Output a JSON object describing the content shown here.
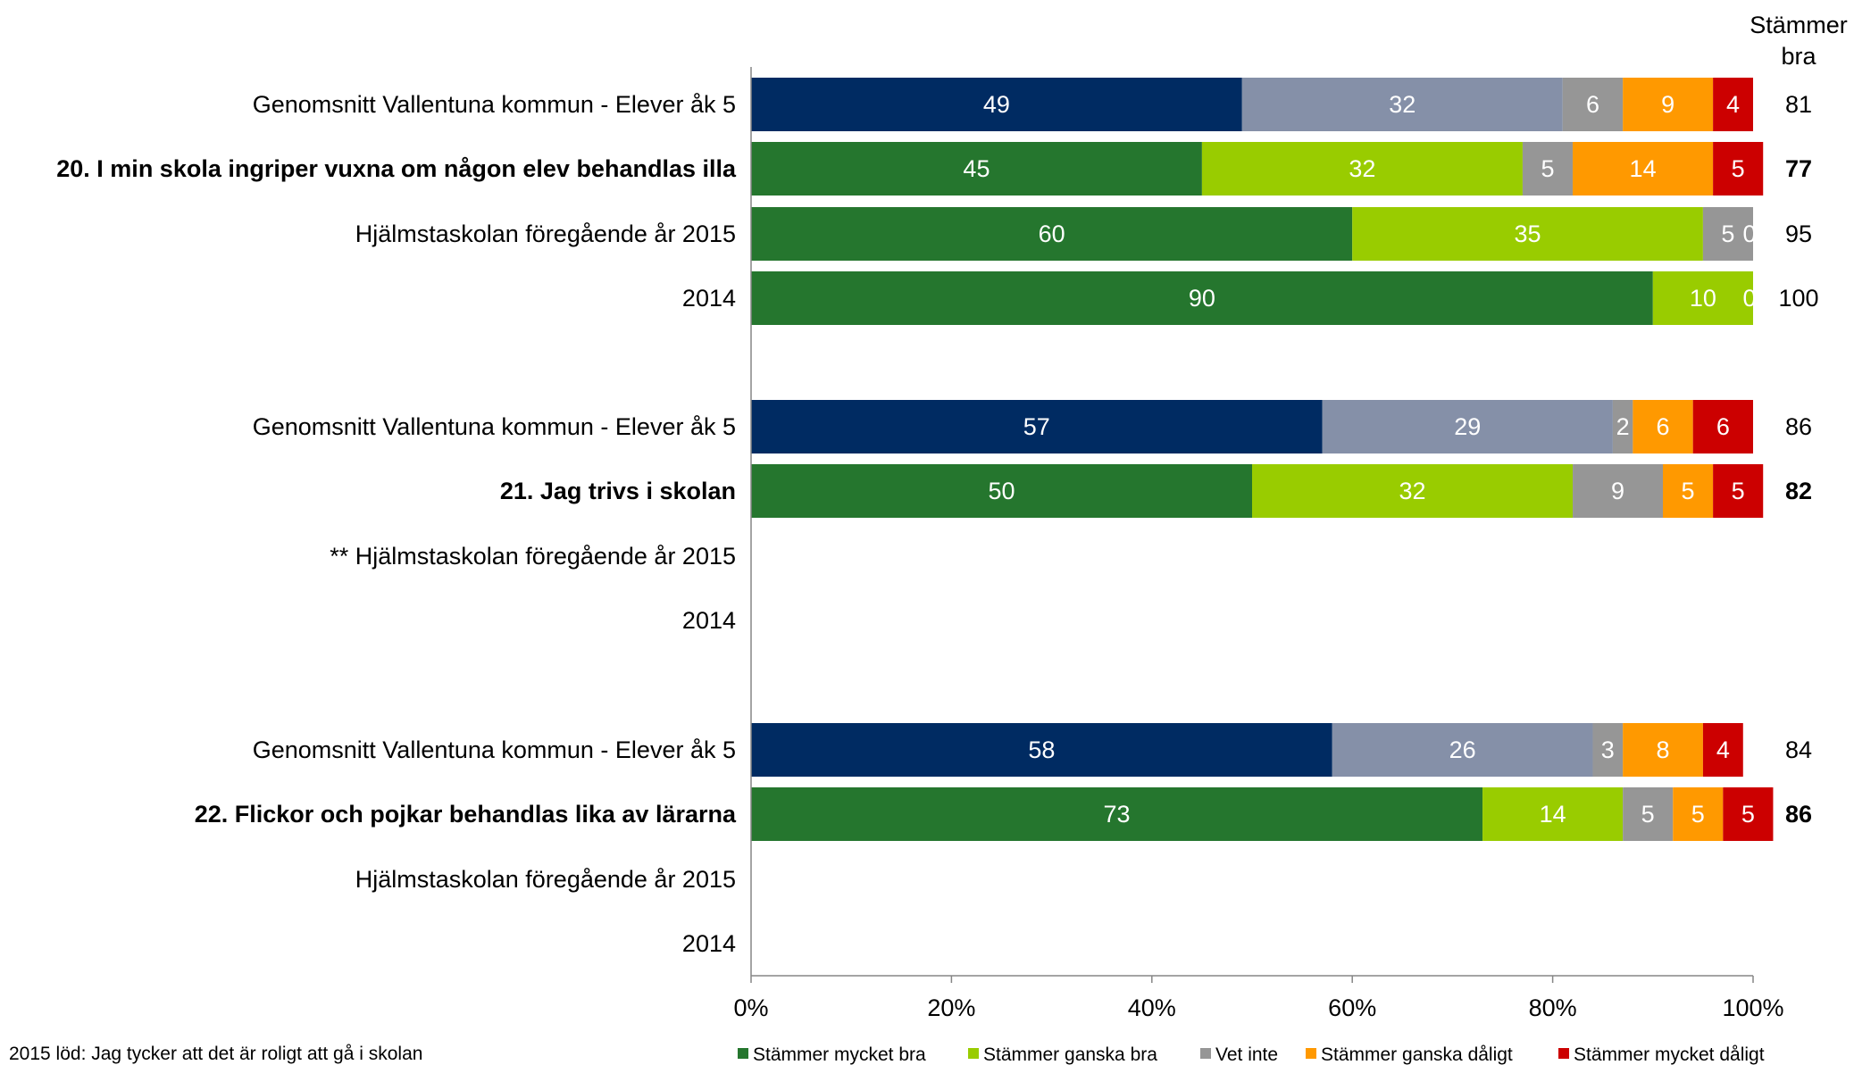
{
  "chart_data": {
    "type": "bar",
    "orientation": "horizontal",
    "stacked": "percent",
    "total_header": [
      "Stämmer",
      "bra"
    ],
    "xlim": [
      0,
      100
    ],
    "xticks": [
      "0%",
      "20%",
      "40%",
      "60%",
      "80%",
      "100%"
    ],
    "legend_position": "bottom-right",
    "series": [
      {
        "name": "Stämmer mycket bra",
        "color": "#25762E"
      },
      {
        "name": "Stämmer ganska bra",
        "color": "#99CC00"
      },
      {
        "name": "Vet inte",
        "color": "#969696"
      },
      {
        "name": "Stämmer ganska dåligt",
        "color": "#FF9900"
      },
      {
        "name": "Stämmer mycket dåligt",
        "color": "#CC0000"
      }
    ],
    "kommun_colors": [
      "#002B62",
      "#8590A8",
      "#969696",
      "#FF9900",
      "#CC0000"
    ],
    "rows": [
      {
        "label": "Genomsnitt Vallentuna kommun - Elever åk 5",
        "kind": "kommun",
        "bold": false,
        "values": [
          49,
          32,
          6,
          9,
          4
        ],
        "labels": [
          "49",
          "32",
          "6",
          "9",
          "4"
        ],
        "total": "81"
      },
      {
        "label": "20. I min skola ingriper vuxna om någon elev behandlas illa",
        "kind": "school",
        "bold": true,
        "values": [
          45,
          32,
          5,
          14,
          5
        ],
        "labels": [
          "45",
          "32",
          "5",
          "14",
          "5"
        ],
        "total": "77"
      },
      {
        "label": "Hjälmstaskolan föregående år 2015",
        "kind": "school",
        "bold": false,
        "values": [
          60,
          35,
          5,
          0,
          0
        ],
        "labels": [
          "60",
          "35",
          "5",
          "0",
          ""
        ],
        "total": "95"
      },
      {
        "label": "2014",
        "kind": "school",
        "bold": false,
        "values": [
          90,
          10,
          0,
          0,
          0
        ],
        "labels": [
          "90",
          "10",
          "0",
          "",
          ""
        ],
        "total": "100"
      },
      {
        "label": "Genomsnitt Vallentuna kommun - Elever åk 5",
        "kind": "kommun",
        "bold": false,
        "values": [
          57,
          29,
          2,
          6,
          6
        ],
        "labels": [
          "57",
          "29",
          "2",
          "6",
          "6"
        ],
        "total": "86"
      },
      {
        "label": "21. Jag trivs i skolan",
        "kind": "school",
        "bold": true,
        "values": [
          50,
          32,
          9,
          5,
          5
        ],
        "labels": [
          "50",
          "32",
          "9",
          "5",
          "5"
        ],
        "total": "82"
      },
      {
        "label": "** Hjälmstaskolan föregående år 2015",
        "kind": "school",
        "bold": false,
        "values": [],
        "labels": [],
        "total": ""
      },
      {
        "label": "2014",
        "kind": "school",
        "bold": false,
        "values": [],
        "labels": [],
        "total": ""
      },
      {
        "label": "Genomsnitt Vallentuna kommun - Elever åk 5",
        "kind": "kommun",
        "bold": false,
        "values": [
          58,
          26,
          3,
          8,
          4
        ],
        "labels": [
          "58",
          "26",
          "3",
          "8",
          "4"
        ],
        "total": "84"
      },
      {
        "label": "22. Flickor och pojkar behandlas lika av lärarna",
        "kind": "school",
        "bold": true,
        "values": [
          73,
          14,
          5,
          5,
          5
        ],
        "labels": [
          "73",
          "14",
          "5",
          "5",
          "5"
        ],
        "total": "86"
      },
      {
        "label": "Hjälmstaskolan föregående år 2015",
        "kind": "school",
        "bold": false,
        "values": [],
        "labels": [],
        "total": ""
      },
      {
        "label": "2014",
        "kind": "school",
        "bold": false,
        "values": [],
        "labels": [],
        "total": ""
      }
    ],
    "footnote": "2015 löd: Jag tycker att det är roligt att gå i skolan"
  }
}
